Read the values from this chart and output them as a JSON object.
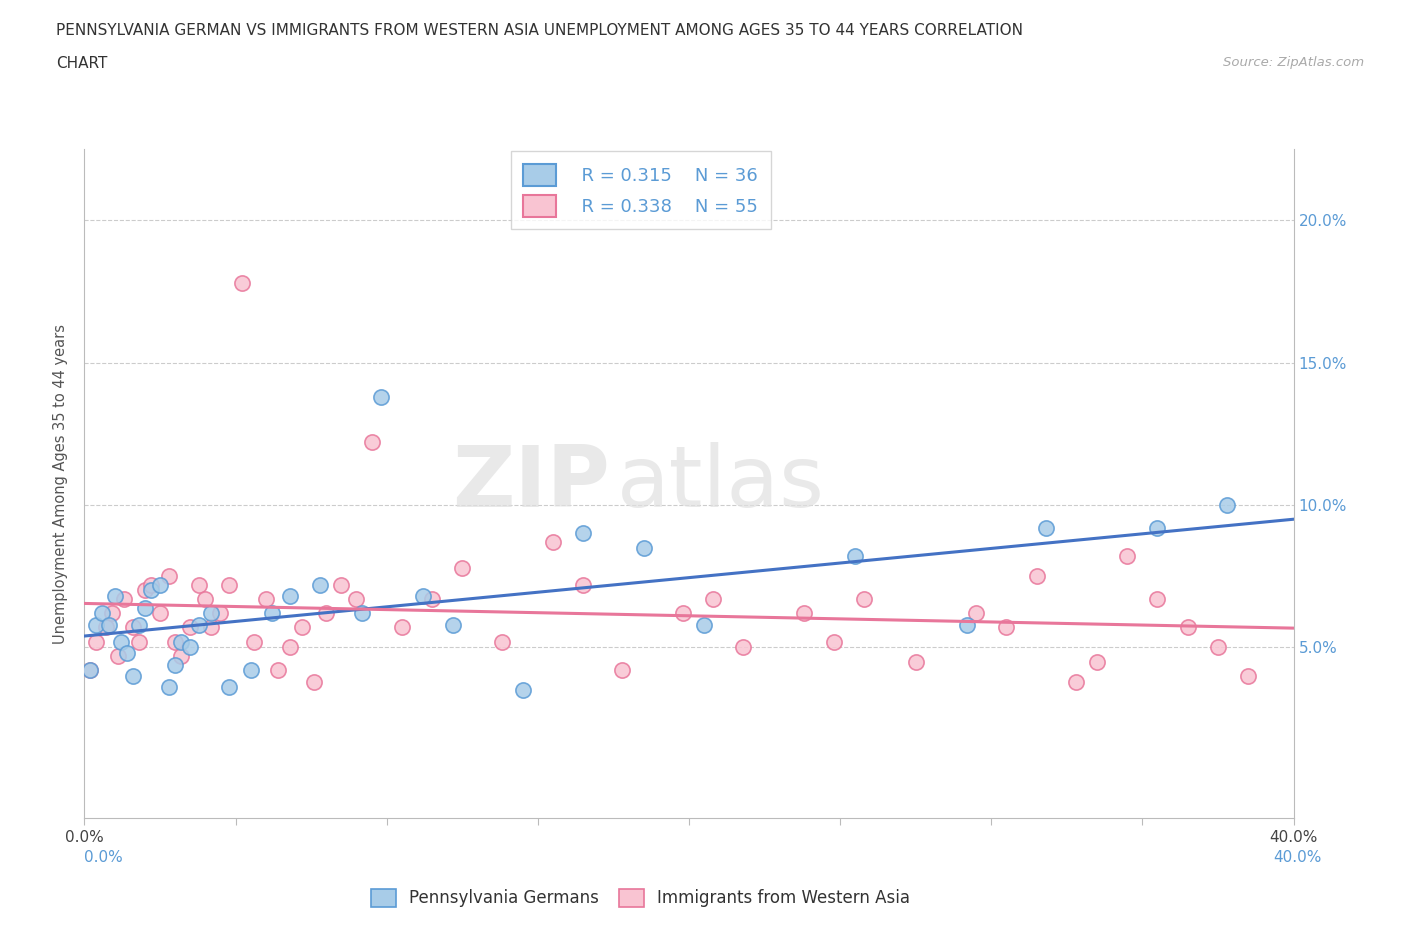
{
  "title_line1": "PENNSYLVANIA GERMAN VS IMMIGRANTS FROM WESTERN ASIA UNEMPLOYMENT AMONG AGES 35 TO 44 YEARS CORRELATION",
  "title_line2": "CHART",
  "source_text": "Source: ZipAtlas.com",
  "ylabel": "Unemployment Among Ages 35 to 44 years",
  "xlim": [
    0.0,
    0.4
  ],
  "ylim": [
    -0.01,
    0.225
  ],
  "yticks": [
    0.05,
    0.1,
    0.15,
    0.2
  ],
  "ytick_labels": [
    "5.0%",
    "10.0%",
    "15.0%",
    "20.0%"
  ],
  "xticks": [
    0.0,
    0.05,
    0.1,
    0.15,
    0.2,
    0.25,
    0.3,
    0.35,
    0.4
  ],
  "xtick_labels": [
    "0.0%",
    "",
    "",
    "",
    "",
    "",
    "",
    "",
    "40.0%"
  ],
  "legend_r1": "R = 0.315",
  "legend_n1": "N = 36",
  "legend_r2": "R = 0.338",
  "legend_n2": "N = 55",
  "color_blue_fill": "#a8cce8",
  "color_blue_edge": "#5b9bd5",
  "color_pink_fill": "#f9c4d2",
  "color_pink_edge": "#e8769a",
  "color_blue_line": "#4472c4",
  "color_pink_line": "#e8769a",
  "color_tick_label": "#5b9bd5",
  "watermark_zip": "ZIP",
  "watermark_atlas": "atlas",
  "legend_label_1": "Pennsylvania Germans",
  "legend_label_2": "Immigrants from Western Asia",
  "blue_x": [
    0.002,
    0.004,
    0.006,
    0.008,
    0.01,
    0.012,
    0.014,
    0.016,
    0.018,
    0.02,
    0.022,
    0.025,
    0.028,
    0.03,
    0.032,
    0.035,
    0.038,
    0.042,
    0.048,
    0.055,
    0.062,
    0.068,
    0.078,
    0.092,
    0.098,
    0.112,
    0.122,
    0.145,
    0.165,
    0.185,
    0.205,
    0.255,
    0.292,
    0.318,
    0.355,
    0.378
  ],
  "blue_y": [
    0.042,
    0.058,
    0.062,
    0.058,
    0.068,
    0.052,
    0.048,
    0.04,
    0.058,
    0.064,
    0.07,
    0.072,
    0.036,
    0.044,
    0.052,
    0.05,
    0.058,
    0.062,
    0.036,
    0.042,
    0.062,
    0.068,
    0.072,
    0.062,
    0.138,
    0.068,
    0.058,
    0.035,
    0.09,
    0.085,
    0.058,
    0.082,
    0.058,
    0.092,
    0.092,
    0.1
  ],
  "pink_x": [
    0.002,
    0.004,
    0.007,
    0.009,
    0.011,
    0.013,
    0.016,
    0.018,
    0.02,
    0.022,
    0.025,
    0.028,
    0.03,
    0.032,
    0.035,
    0.038,
    0.04,
    0.042,
    0.045,
    0.048,
    0.052,
    0.056,
    0.06,
    0.064,
    0.068,
    0.072,
    0.076,
    0.08,
    0.085,
    0.09,
    0.095,
    0.105,
    0.115,
    0.125,
    0.138,
    0.155,
    0.165,
    0.178,
    0.198,
    0.208,
    0.218,
    0.238,
    0.248,
    0.258,
    0.275,
    0.295,
    0.305,
    0.315,
    0.328,
    0.335,
    0.345,
    0.355,
    0.365,
    0.375,
    0.385
  ],
  "pink_y": [
    0.042,
    0.052,
    0.057,
    0.062,
    0.047,
    0.067,
    0.057,
    0.052,
    0.07,
    0.072,
    0.062,
    0.075,
    0.052,
    0.047,
    0.057,
    0.072,
    0.067,
    0.057,
    0.062,
    0.072,
    0.178,
    0.052,
    0.067,
    0.042,
    0.05,
    0.057,
    0.038,
    0.062,
    0.072,
    0.067,
    0.122,
    0.057,
    0.067,
    0.078,
    0.052,
    0.087,
    0.072,
    0.042,
    0.062,
    0.067,
    0.05,
    0.062,
    0.052,
    0.067,
    0.045,
    0.062,
    0.057,
    0.075,
    0.038,
    0.045,
    0.082,
    0.067,
    0.057,
    0.05,
    0.04
  ]
}
